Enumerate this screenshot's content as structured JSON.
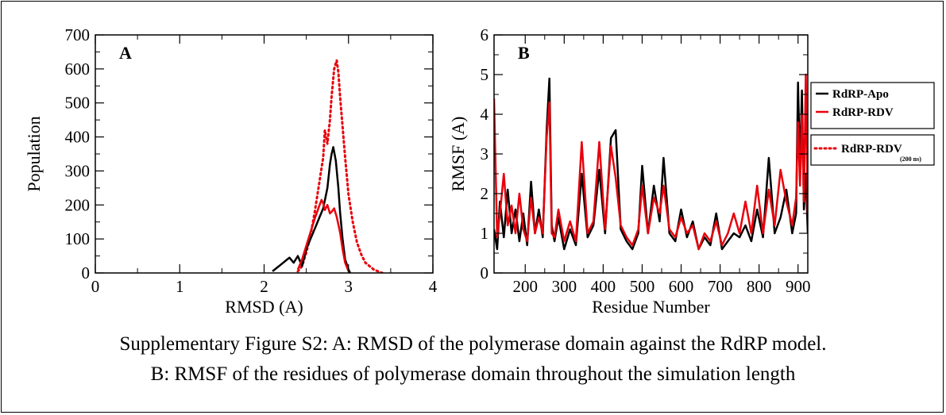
{
  "caption": {
    "line1": "Supplementary Figure S2: A: RMSD of the polymerase domain against the RdRP model.",
    "line2": "B: RMSF of the residues of polymerase domain throughout the simulation length"
  },
  "colors": {
    "apo": "#000000",
    "rdv": "#e8000b",
    "rdv200": "#e8000b"
  },
  "chart_data": [
    {
      "type": "line",
      "panel_label": "A",
      "xlabel": "RMSD (A)",
      "ylabel": "Population",
      "xlim": [
        0,
        4
      ],
      "ylim": [
        0,
        700
      ],
      "xticks": [
        0,
        1,
        2,
        3,
        4
      ],
      "yticks": [
        0,
        100,
        200,
        300,
        400,
        500,
        600,
        700
      ],
      "grid": false,
      "series": [
        {
          "key": "rdv200",
          "style": "dotted",
          "x": [
            2.4,
            2.45,
            2.5,
            2.55,
            2.6,
            2.65,
            2.7,
            2.72,
            2.75,
            2.78,
            2.8,
            2.83,
            2.86,
            2.88,
            2.9,
            2.93,
            2.96,
            3.0,
            3.05,
            3.1,
            3.15,
            3.2,
            3.25,
            3.3,
            3.35,
            3.4
          ],
          "y": [
            5,
            20,
            60,
            110,
            180,
            260,
            340,
            420,
            380,
            450,
            520,
            600,
            625,
            590,
            520,
            430,
            340,
            230,
            150,
            90,
            55,
            30,
            20,
            10,
            5,
            0
          ]
        },
        {
          "key": "apo",
          "style": "solid",
          "x": [
            2.1,
            2.15,
            2.2,
            2.25,
            2.3,
            2.35,
            2.4,
            2.45,
            2.5,
            2.55,
            2.6,
            2.65,
            2.7,
            2.75,
            2.78,
            2.8,
            2.82,
            2.85,
            2.88,
            2.9,
            2.93,
            2.96,
            3.0,
            3.02
          ],
          "y": [
            5,
            15,
            25,
            35,
            45,
            30,
            50,
            20,
            70,
            100,
            130,
            160,
            190,
            250,
            320,
            350,
            370,
            330,
            250,
            180,
            100,
            40,
            10,
            0
          ]
        },
        {
          "key": "rdv",
          "style": "solid",
          "x": [
            2.4,
            2.45,
            2.5,
            2.55,
            2.6,
            2.65,
            2.68,
            2.7,
            2.72,
            2.75,
            2.78,
            2.8,
            2.83,
            2.86,
            2.9,
            2.93,
            2.96,
            3.0
          ],
          "y": [
            10,
            40,
            80,
            120,
            160,
            195,
            215,
            205,
            185,
            200,
            175,
            180,
            190,
            165,
            120,
            70,
            30,
            5
          ]
        }
      ]
    },
    {
      "type": "line",
      "panel_label": "B",
      "xlabel": "Residue Number",
      "ylabel": "RMSF (A)",
      "xlim": [
        120,
        925
      ],
      "ylim": [
        0,
        6
      ],
      "xticks": [
        200,
        300,
        400,
        500,
        600,
        700,
        800,
        900
      ],
      "yticks": [
        0,
        1,
        2,
        3,
        4,
        5,
        6
      ],
      "grid": false,
      "legend": {
        "placement": "outside-right",
        "entries": [
          {
            "key": "apo",
            "label": "RdRP-Apo",
            "style": "solid"
          },
          {
            "key": "rdv",
            "label": "RdRP-RDV",
            "style": "solid"
          }
        ],
        "extra_entry": {
          "key": "rdv200",
          "label": "RdRP-RDV",
          "sublabel": "(200 ns)",
          "style": "dotted"
        }
      },
      "series": [
        {
          "key": "apo",
          "style": "solid",
          "x": [
            120,
            128,
            135,
            145,
            155,
            165,
            175,
            185,
            195,
            205,
            215,
            225,
            235,
            245,
            255,
            262,
            268,
            275,
            285,
            300,
            315,
            330,
            345,
            360,
            375,
            390,
            405,
            420,
            432,
            445,
            460,
            475,
            490,
            500,
            515,
            530,
            545,
            555,
            570,
            585,
            600,
            615,
            630,
            645,
            660,
            675,
            690,
            705,
            720,
            735,
            750,
            765,
            780,
            795,
            810,
            825,
            840,
            855,
            870,
            885,
            895,
            900,
            905,
            910,
            915,
            920,
            925
          ],
          "y": [
            1.1,
            0.6,
            1.8,
            0.9,
            2.1,
            1.0,
            1.6,
            0.8,
            1.5,
            0.7,
            2.3,
            1.0,
            1.6,
            0.9,
            3.6,
            4.9,
            1.2,
            0.8,
            1.4,
            0.6,
            1.1,
            0.7,
            2.5,
            0.9,
            1.2,
            2.6,
            1.0,
            3.4,
            3.6,
            1.1,
            0.8,
            0.6,
            1.0,
            2.7,
            1.0,
            2.2,
            1.3,
            2.9,
            1.0,
            0.8,
            1.6,
            0.9,
            1.3,
            0.6,
            0.9,
            0.7,
            1.5,
            0.6,
            0.8,
            1.0,
            0.9,
            1.2,
            0.8,
            1.6,
            0.9,
            2.9,
            1.0,
            1.4,
            2.1,
            1.0,
            1.5,
            4.8,
            2.6,
            4.6,
            1.6,
            2.5,
            1.0
          ]
        },
        {
          "key": "rdv",
          "style": "solid",
          "x": [
            120,
            128,
            135,
            145,
            155,
            165,
            175,
            185,
            195,
            205,
            215,
            225,
            235,
            245,
            255,
            262,
            268,
            275,
            285,
            300,
            315,
            330,
            345,
            360,
            375,
            390,
            405,
            420,
            432,
            445,
            460,
            475,
            490,
            500,
            515,
            530,
            545,
            555,
            570,
            585,
            600,
            615,
            630,
            645,
            660,
            675,
            690,
            705,
            720,
            735,
            750,
            765,
            780,
            795,
            810,
            825,
            840,
            855,
            870,
            885,
            895,
            900,
            905,
            910,
            915,
            920,
            925
          ],
          "y": [
            4.4,
            0.9,
            1.5,
            2.5,
            1.2,
            1.7,
            1.0,
            2.0,
            1.1,
            0.8,
            1.9,
            1.0,
            1.4,
            1.0,
            3.4,
            4.3,
            1.0,
            0.9,
            1.6,
            0.8,
            1.3,
            0.8,
            3.3,
            1.0,
            1.3,
            3.3,
            1.1,
            3.2,
            2.4,
            1.2,
            0.9,
            0.7,
            1.1,
            2.2,
            1.0,
            1.9,
            1.5,
            2.2,
            1.1,
            0.9,
            1.4,
            1.0,
            1.2,
            0.6,
            1.0,
            0.8,
            1.3,
            0.7,
            1.0,
            1.5,
            1.0,
            1.8,
            1.0,
            2.2,
            1.0,
            2.1,
            1.2,
            2.6,
            1.8,
            1.2,
            1.9,
            3.8,
            2.2,
            4.0,
            1.8,
            5.0,
            1.5
          ]
        }
      ]
    }
  ]
}
